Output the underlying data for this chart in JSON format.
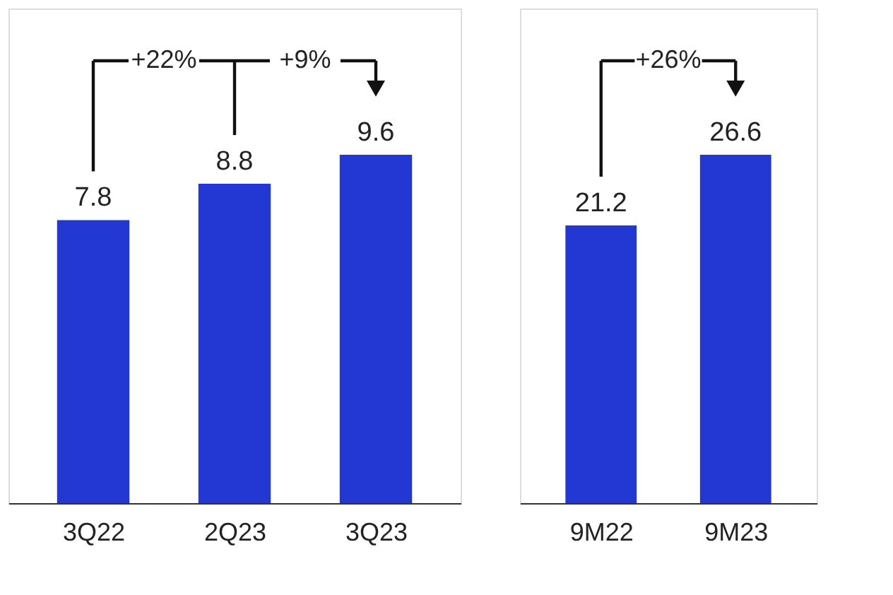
{
  "chart_data": [
    {
      "type": "bar",
      "categories": [
        "3Q22",
        "2Q23",
        "3Q23"
      ],
      "values": [
        7.8,
        8.8,
        9.6
      ],
      "color": "#2337d2",
      "data_labels": true,
      "annotations": [
        "+22%",
        "+9%"
      ]
    },
    {
      "type": "bar",
      "categories": [
        "9M22",
        "9M23"
      ],
      "values": [
        21.2,
        26.6
      ],
      "color": "#2337d2",
      "data_labels": true,
      "annotations": [
        "+26%"
      ]
    }
  ]
}
